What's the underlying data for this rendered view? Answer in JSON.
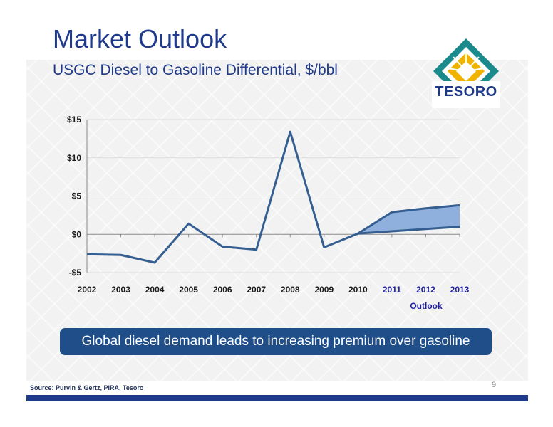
{
  "slide": {
    "title": "Market Outlook",
    "banner": "Global diesel demand leads to increasing premium over gasoline",
    "source": "Source: Purvin & Gertz, PIRA, Tesoro",
    "page_number": "9",
    "logo_text": "TESORO"
  },
  "colors": {
    "title": "#1f3a8a",
    "line": "#365f91",
    "band_fill": "#8fb0dc",
    "outlook_tick": "#1f1fa0",
    "banner": "#1f4e89"
  },
  "chart_data": {
    "type": "line",
    "title": "USGC Diesel to Gasoline Differential, $/bbl",
    "ylim": [
      -5,
      15
    ],
    "yticks": [
      {
        "value": 15,
        "label": "$15"
      },
      {
        "value": 10,
        "label": "$10"
      },
      {
        "value": 5,
        "label": "$5"
      },
      {
        "value": 0,
        "label": "$0"
      },
      {
        "value": -5,
        "label": "-$5"
      }
    ],
    "grid": true,
    "categories": [
      "2002",
      "2003",
      "2004",
      "2005",
      "2006",
      "2007",
      "2008",
      "2009",
      "2010",
      "2011",
      "2012",
      "2013"
    ],
    "outlook_categories": [
      "2011",
      "2012",
      "2013"
    ],
    "outlook_label": "Outlook",
    "series": [
      {
        "values": [
          -2.6,
          -2.7,
          -3.7,
          1.4,
          -1.6,
          -2.0,
          13.4,
          -1.7,
          0.1,
          null,
          null,
          null
        ]
      }
    ],
    "outlook_band": {
      "upper": [
        0.1,
        2.9,
        3.4,
        3.8
      ],
      "lower": [
        0.1,
        0.4,
        0.7,
        1.0
      ],
      "categories": [
        "2010",
        "2011",
        "2012",
        "2013"
      ]
    }
  }
}
